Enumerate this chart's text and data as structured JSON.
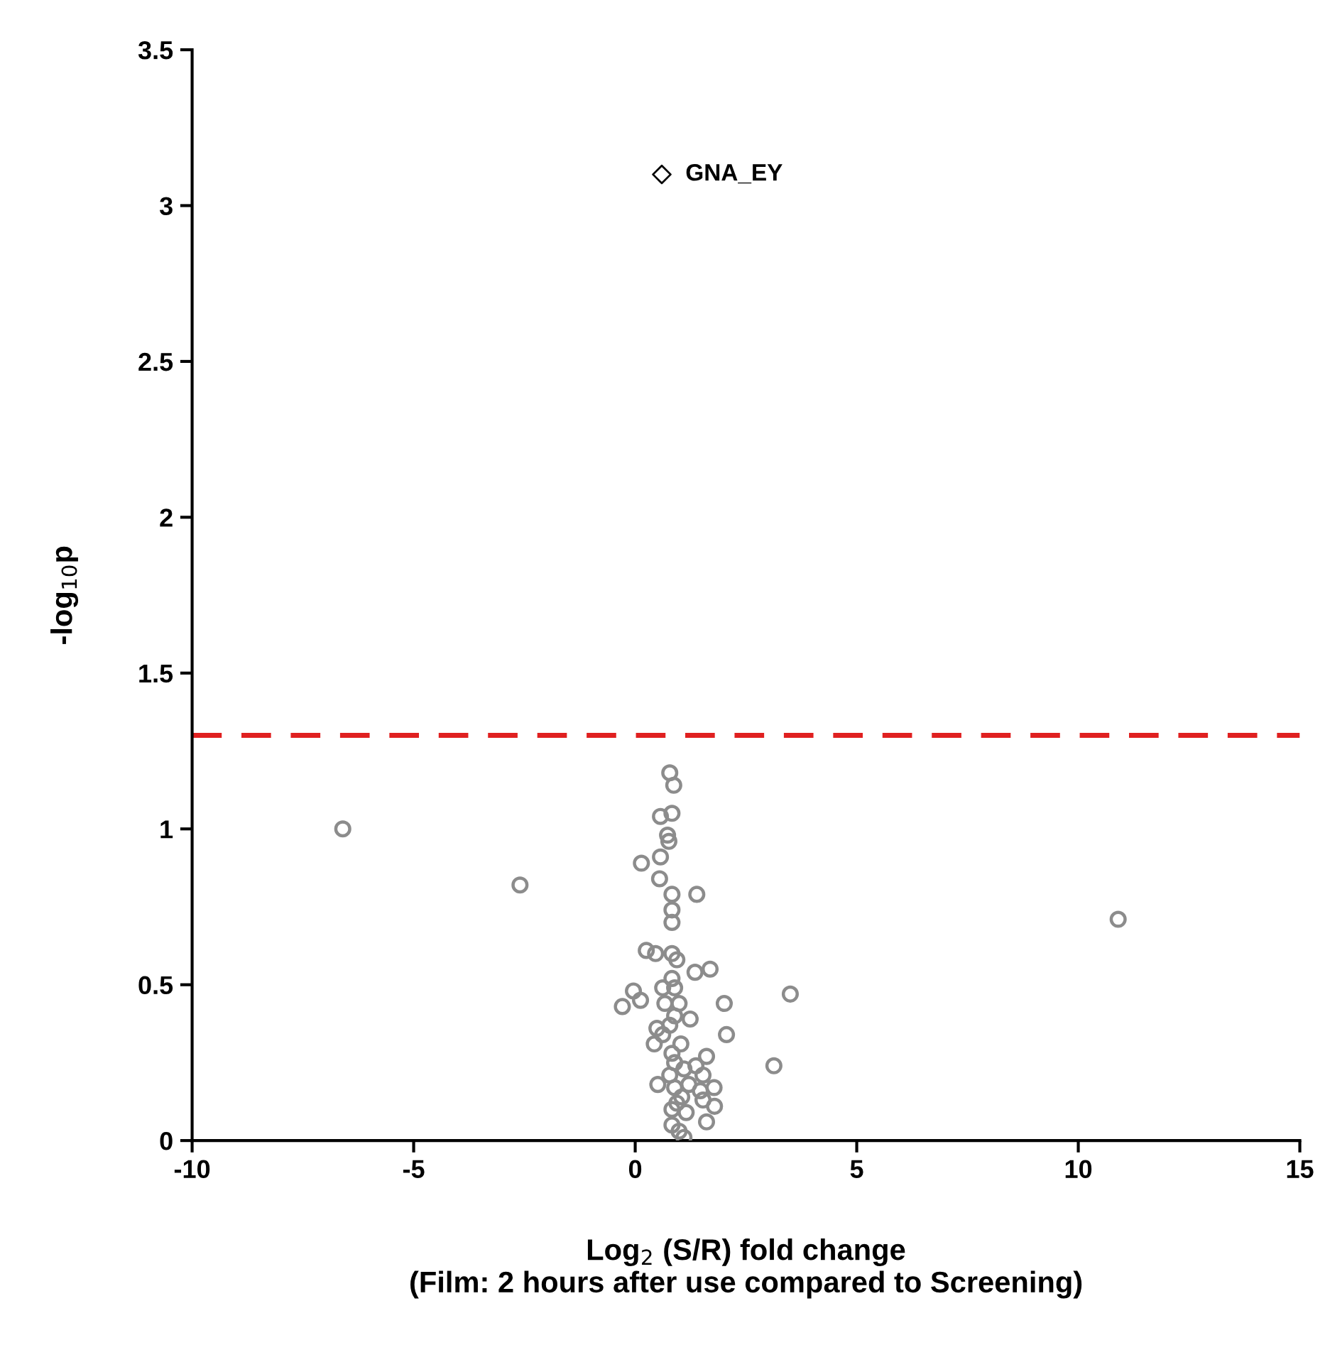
{
  "chart_data": {
    "type": "scatter",
    "xlabel": "Log$_{2}$ (S/R) fold change\n(Film: 2 hours after use compared to Screening)",
    "ylabel": "-log$_{10}$p",
    "xlim": [
      -10,
      15
    ],
    "xticks": [
      -10,
      -5,
      0,
      5,
      10,
      15
    ],
    "ylim": [
      0,
      3.5
    ],
    "yticks": [
      0,
      0.5,
      1,
      1.5,
      2,
      2.5,
      3,
      3.5
    ],
    "grid": false,
    "legend": false,
    "ref_lines": [
      {
        "axis": "y",
        "value": 1.3,
        "color": "#e02020",
        "line_style": "dashed"
      }
    ],
    "series": [
      {
        "color": "#8c8c8c",
        "marker": "circle",
        "x": [
          -6.6,
          -2.6,
          10.9,
          0.76,
          0.14,
          0.57,
          0.55,
          0.83,
          1.39,
          0.83,
          0.83,
          0.25,
          0.46,
          0.83,
          0.94,
          1.35,
          1.69,
          0.83,
          0.89,
          0.62,
          -0.04,
          0.12,
          -0.29,
          0.67,
          0.99,
          2.01,
          3.5,
          0.89,
          1.24,
          0.49,
          0.78,
          2.06,
          0.43,
          1.03,
          0.83,
          1.61,
          3.13,
          1.37,
          1.1,
          0.78,
          1.53,
          0.51,
          0.89,
          1.21,
          1.78,
          1.47,
          1.05,
          1.79,
          1.53,
          0.83,
          1.15,
          1.61,
          0.83,
          0.99,
          1.1,
          0.94,
          0.89,
          0.62,
          0.78,
          0.87,
          0.57,
          0.83,
          0.73
        ],
        "values": [
          1.0,
          0.82,
          0.71,
          0.96,
          0.89,
          0.91,
          0.84,
          0.79,
          0.79,
          0.74,
          0.7,
          0.61,
          0.6,
          0.6,
          0.58,
          0.54,
          0.55,
          0.52,
          0.49,
          0.49,
          0.48,
          0.45,
          0.43,
          0.44,
          0.44,
          0.44,
          0.47,
          0.4,
          0.39,
          0.36,
          0.37,
          0.34,
          0.31,
          0.31,
          0.28,
          0.27,
          0.24,
          0.24,
          0.23,
          0.21,
          0.21,
          0.18,
          0.17,
          0.18,
          0.17,
          0.16,
          0.14,
          0.11,
          0.13,
          0.1,
          0.09,
          0.06,
          0.05,
          0.03,
          0.01,
          0.12,
          0.25,
          0.34,
          1.18,
          1.14,
          1.04,
          1.05,
          0.98
        ]
      },
      {
        "name": "GNA_EY",
        "color": "#000000",
        "marker": "diamond",
        "x": [
          0.6
        ],
        "values": [
          3.1
        ]
      }
    ]
  }
}
